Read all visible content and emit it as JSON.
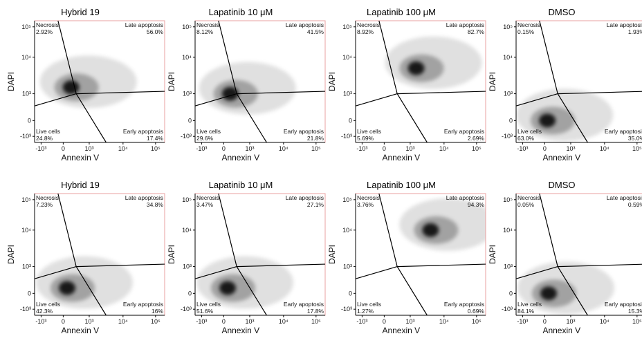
{
  "figure": {
    "rows": 2,
    "cols": 4,
    "xaxis_label": "Annexin V",
    "yaxis_label": "DAPI",
    "xtick_labels": [
      "-10³",
      "0",
      "10³",
      "10⁴",
      "10⁵"
    ],
    "ytick_labels": [
      "10⁵",
      "10⁴",
      "10³",
      "0",
      "-10³"
    ],
    "quadrant_names": {
      "necrosis": "Necrosis",
      "late": "Late apoptosis",
      "live": "Live cells",
      "early": "Early apoptosis"
    },
    "colors": {
      "density": "#000000",
      "axes_frame": "#000000",
      "plot_border_accent": "#e8a0a0",
      "gate_lines": "#000000"
    }
  },
  "chart_data": [
    {
      "type": "scatter",
      "title": "Hybrid 19",
      "xlabel": "Annexin V",
      "ylabel": "DAPI",
      "scale": "biexponential",
      "quadrants": {
        "necrosis": "2.92%",
        "late": "56.0%",
        "live": "24.8%",
        "early": "17.4%"
      },
      "density_centers": [
        {
          "x": 300,
          "y": 1500,
          "weight": 1.0
        }
      ]
    },
    {
      "type": "scatter",
      "title": "Lapatinib 10 μM",
      "xlabel": "Annexin V",
      "ylabel": "DAPI",
      "scale": "biexponential",
      "quadrants": {
        "necrosis": "8.12%",
        "late": "41.5%",
        "live": "29.6%",
        "early": "21.8%"
      },
      "density_centers": [
        {
          "x": 250,
          "y": 1000,
          "weight": 1.0
        }
      ]
    },
    {
      "type": "scatter",
      "title": "Lapatinib 100 μM",
      "xlabel": "Annexin V",
      "ylabel": "DAPI",
      "scale": "biexponential",
      "quadrants": {
        "necrosis": "8.92%",
        "late": "82.7%",
        "live": "5.69%",
        "early": "2.69%"
      },
      "density_centers": [
        {
          "x": 1500,
          "y": 5000,
          "weight": 1.0
        }
      ]
    },
    {
      "type": "scatter",
      "title": "DMSO",
      "xlabel": "Annexin V",
      "ylabel": "DAPI",
      "scale": "biexponential",
      "quadrants": {
        "necrosis": "0.15%",
        "late": "1.93%",
        "live": "63.0%",
        "early": "35.0%"
      },
      "density_centers": [
        {
          "x": 100,
          "y": 0,
          "weight": 1.0
        }
      ]
    },
    {
      "type": "scatter",
      "title": "Hybrid 19",
      "xlabel": "Annexin V",
      "ylabel": "DAPI",
      "scale": "biexponential",
      "quadrants": {
        "necrosis": "7.23%",
        "late": "34.8%",
        "live": "42.3%",
        "early": "16%"
      },
      "density_centers": [
        {
          "x": 150,
          "y": 200,
          "weight": 1.0
        }
      ]
    },
    {
      "type": "scatter",
      "title": "Lapatinib 10 μM",
      "xlabel": "Annexin V",
      "ylabel": "DAPI",
      "scale": "biexponential",
      "quadrants": {
        "necrosis": "3.47%",
        "late": "27.1%",
        "live": "51.6%",
        "early": "17.8%"
      },
      "density_centers": [
        {
          "x": 150,
          "y": 200,
          "weight": 1.0
        }
      ]
    },
    {
      "type": "scatter",
      "title": "Lapatinib 100 μM",
      "xlabel": "Annexin V",
      "ylabel": "DAPI",
      "scale": "biexponential",
      "quadrants": {
        "necrosis": "3.76%",
        "late": "94.3%",
        "live": "1.27%",
        "early": "0.69%"
      },
      "density_centers": [
        {
          "x": 4000,
          "y": 10000,
          "weight": 1.0
        }
      ]
    },
    {
      "type": "scatter",
      "title": "DMSO",
      "xlabel": "Annexin V",
      "ylabel": "DAPI",
      "scale": "biexponential",
      "quadrants": {
        "necrosis": "0.05%",
        "late": "0.59%",
        "live": "84.1%",
        "early": "15.3%"
      },
      "density_centers": [
        {
          "x": 150,
          "y": 0,
          "weight": 1.0
        }
      ]
    }
  ]
}
